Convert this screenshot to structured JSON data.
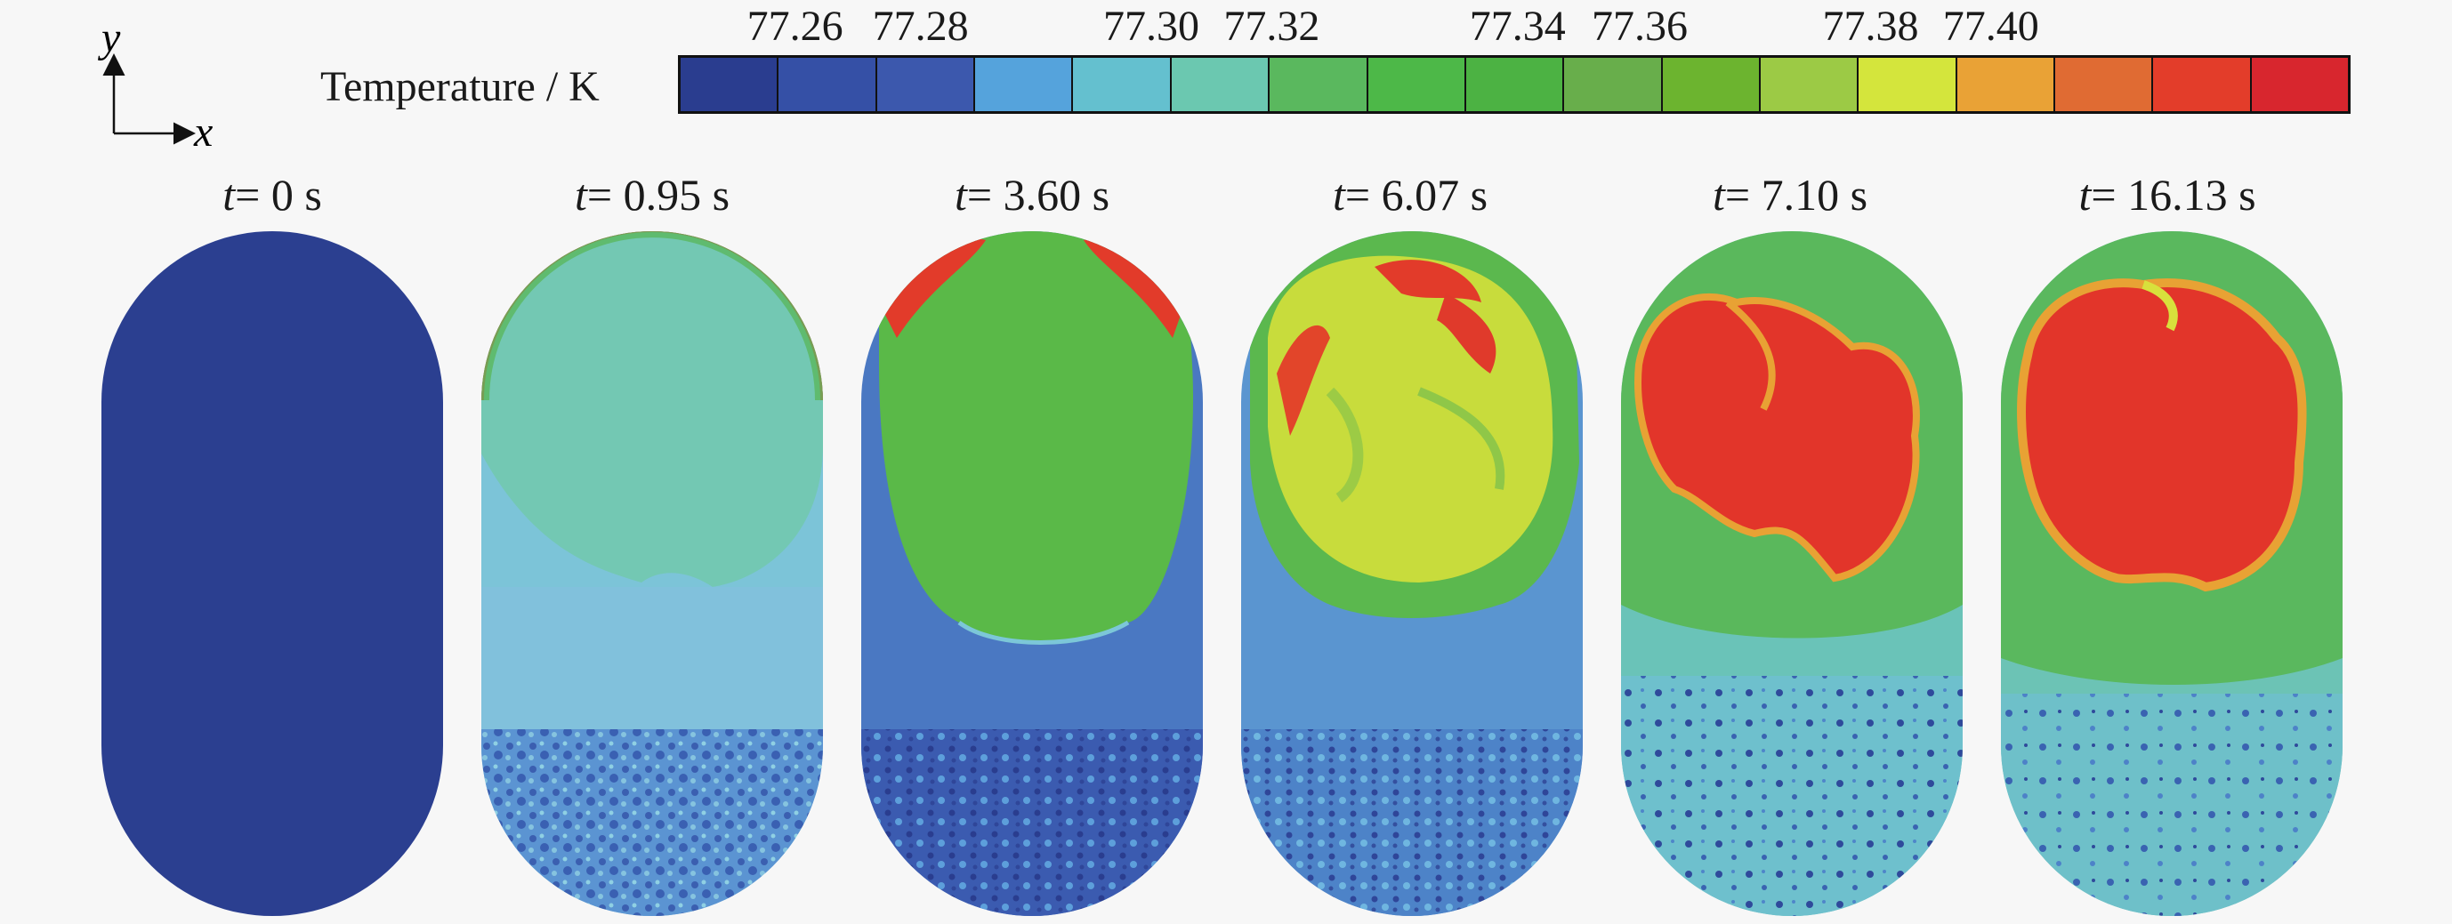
{
  "axes": {
    "x": "x",
    "y": "y"
  },
  "legend": {
    "title": "Temperature / K",
    "ticks": [
      "77.26",
      "77.28",
      "77.30",
      "77.32",
      "77.34",
      "77.36",
      "77.38",
      "77.40"
    ],
    "colors": [
      "#2a3d8f",
      "#3550a6",
      "#3c58ad",
      "#55a3dc",
      "#64c0cf",
      "#6bc8b0",
      "#5ab85e",
      "#4db848",
      "#4cb243",
      "#68ae4b",
      "#6cb42f",
      "#9cca45",
      "#d4e53c",
      "#e9a236",
      "#e06b33",
      "#e33d2a",
      "#d8262e"
    ]
  },
  "panels": [
    {
      "time_var": "t",
      "time_value": "= 0 s"
    },
    {
      "time_var": "t",
      "time_value": "= 0.95 s"
    },
    {
      "time_var": "t",
      "time_value": "= 3.60 s"
    },
    {
      "time_var": "t",
      "time_value": "= 6.07 s"
    },
    {
      "time_var": "t",
      "time_value": "= 7.10 s"
    },
    {
      "time_var": "t",
      "time_value": "= 16.13 s"
    }
  ]
}
